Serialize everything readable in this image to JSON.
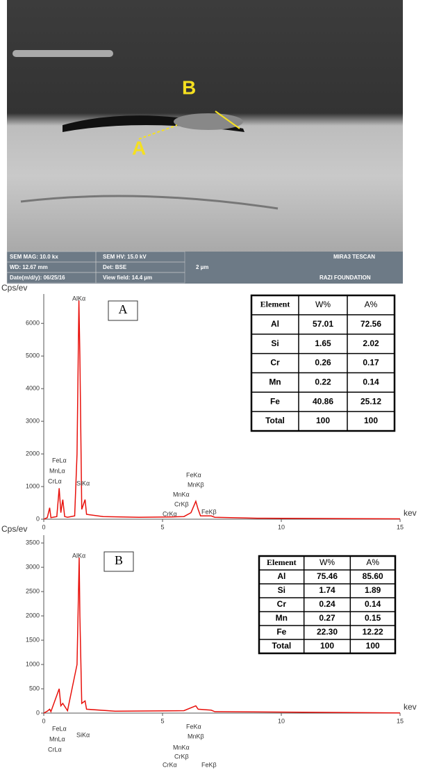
{
  "sem_image": {
    "labels": [
      "B",
      "A"
    ],
    "info": [
      "SEM MAG: 10.0 kx",
      "SEM HV: 15.0 kV",
      "MIRA3 TESCAN",
      "WD: 12.67 mm",
      "Det: BSE",
      "2 µm",
      "Date(m/d/y): 06/25/16",
      "View field: 14.4 µm",
      "RAZI FOUNDATION"
    ]
  },
  "chart_data": [
    {
      "type": "line",
      "panel": "A",
      "y_label": "Cps/ev",
      "x_label": "kev",
      "color": "#e8100b",
      "x": [
        0,
        0.15,
        0.25,
        0.3,
        0.55,
        0.65,
        0.72,
        0.8,
        0.88,
        1.0,
        1.3,
        1.4,
        1.48,
        1.52,
        1.6,
        1.74,
        1.8,
        2.5,
        4,
        5.4,
        5.9,
        6.2,
        6.4,
        6.5,
        6.6,
        7.05,
        7.2,
        9,
        15
      ],
      "values": [
        0,
        50,
        350,
        50,
        80,
        950,
        200,
        600,
        80,
        60,
        100,
        2000,
        6700,
        5000,
        300,
        600,
        150,
        80,
        60,
        70,
        80,
        200,
        550,
        300,
        100,
        100,
        60,
        30,
        10
      ],
      "xlim": [
        0,
        15
      ],
      "xticks": [
        0,
        5,
        10,
        15
      ],
      "ylim": [
        0,
        6900
      ],
      "yticks": [
        0,
        1000,
        2000,
        3000,
        4000,
        5000,
        6000
      ],
      "annotations": [
        "AlKα",
        "FeLα",
        "MnLα",
        "CrLα",
        "SiKα",
        "CrKα",
        "MnKα",
        "CrKβ",
        "FeKα",
        "MnKβ",
        "FeKβ"
      ],
      "table": {
        "header": [
          "Element",
          "W%",
          "A%"
        ],
        "rows": [
          [
            "Al",
            "57.01",
            "72.56"
          ],
          [
            "Si",
            "1.65",
            "2.02"
          ],
          [
            "Cr",
            "0.26",
            "0.17"
          ],
          [
            "Mn",
            "0.22",
            "0.14"
          ],
          [
            "Fe",
            "40.86",
            "25.12"
          ],
          [
            "Total",
            "100",
            "100"
          ]
        ]
      }
    },
    {
      "type": "line",
      "panel": "B",
      "y_label": "Cps/ev",
      "x_label": "kev",
      "color": "#e8100b",
      "x": [
        0,
        0.15,
        0.25,
        0.3,
        0.65,
        0.72,
        0.8,
        1.0,
        1.4,
        1.49,
        1.52,
        1.6,
        1.74,
        1.8,
        3,
        5.9,
        6.4,
        6.5,
        7.05,
        7.2,
        15
      ],
      "values": [
        0,
        40,
        80,
        30,
        500,
        150,
        200,
        50,
        1000,
        3200,
        2000,
        200,
        250,
        80,
        40,
        50,
        150,
        80,
        60,
        30,
        5
      ],
      "xlim": [
        0,
        15
      ],
      "xticks": [
        0,
        5,
        10,
        15
      ],
      "ylim": [
        0,
        3660
      ],
      "yticks": [
        0,
        500,
        1000,
        1500,
        2000,
        2500,
        3000,
        3500
      ],
      "annotations": [
        "AlKα",
        "FeLα",
        "MnLα",
        "CrLα",
        "SiKα",
        "CrKα",
        "MnKα",
        "CrKβ",
        "FeKα",
        "MnKβ",
        "FeKβ"
      ],
      "table": {
        "header": [
          "Element",
          "W%",
          "A%"
        ],
        "rows": [
          [
            "Al",
            "75.46",
            "85.60"
          ],
          [
            "Si",
            "1.74",
            "1.89"
          ],
          [
            "Cr",
            "0.24",
            "0.14"
          ],
          [
            "Mn",
            "0.27",
            "0.15"
          ],
          [
            "Fe",
            "22.30",
            "12.22"
          ],
          [
            "Total",
            "100",
            "100"
          ]
        ]
      }
    }
  ]
}
